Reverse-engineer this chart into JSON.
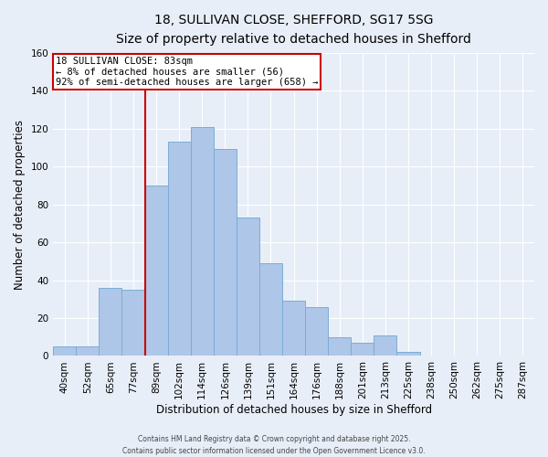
{
  "title_line1": "18, SULLIVAN CLOSE, SHEFFORD, SG17 5SG",
  "title_line2": "Size of property relative to detached houses in Shefford",
  "xlabel": "Distribution of detached houses by size in Shefford",
  "ylabel": "Number of detached properties",
  "bar_labels": [
    "40sqm",
    "52sqm",
    "65sqm",
    "77sqm",
    "89sqm",
    "102sqm",
    "114sqm",
    "126sqm",
    "139sqm",
    "151sqm",
    "164sqm",
    "176sqm",
    "188sqm",
    "201sqm",
    "213sqm",
    "225sqm",
    "238sqm",
    "250sqm",
    "262sqm",
    "275sqm",
    "287sqm"
  ],
  "bar_values": [
    5,
    5,
    36,
    35,
    90,
    113,
    121,
    109,
    73,
    49,
    29,
    26,
    10,
    7,
    11,
    2,
    0,
    0,
    0,
    0,
    0
  ],
  "bar_color": "#aec6e8",
  "bar_edge_color": "#7aadd4",
  "annotation_text": "18 SULLIVAN CLOSE: 83sqm\n← 8% of detached houses are smaller (56)\n92% of semi-detached houses are larger (658) →",
  "annotation_box_color": "#ffffff",
  "annotation_box_edge_color": "#cc0000",
  "vline_color": "#cc0000",
  "vline_x": 3.5,
  "ylim": [
    0,
    160
  ],
  "yticks": [
    0,
    20,
    40,
    60,
    80,
    100,
    120,
    140,
    160
  ],
  "footer_line1": "Contains HM Land Registry data © Crown copyright and database right 2025.",
  "footer_line2": "Contains public sector information licensed under the Open Government Licence v3.0.",
  "bg_color": "#e8eef8",
  "grid_color": "#ffffff",
  "title_fontsize": 10,
  "subtitle_fontsize": 9,
  "label_fontsize": 8.5,
  "tick_fontsize": 7.5,
  "annotation_fontsize": 7.5
}
